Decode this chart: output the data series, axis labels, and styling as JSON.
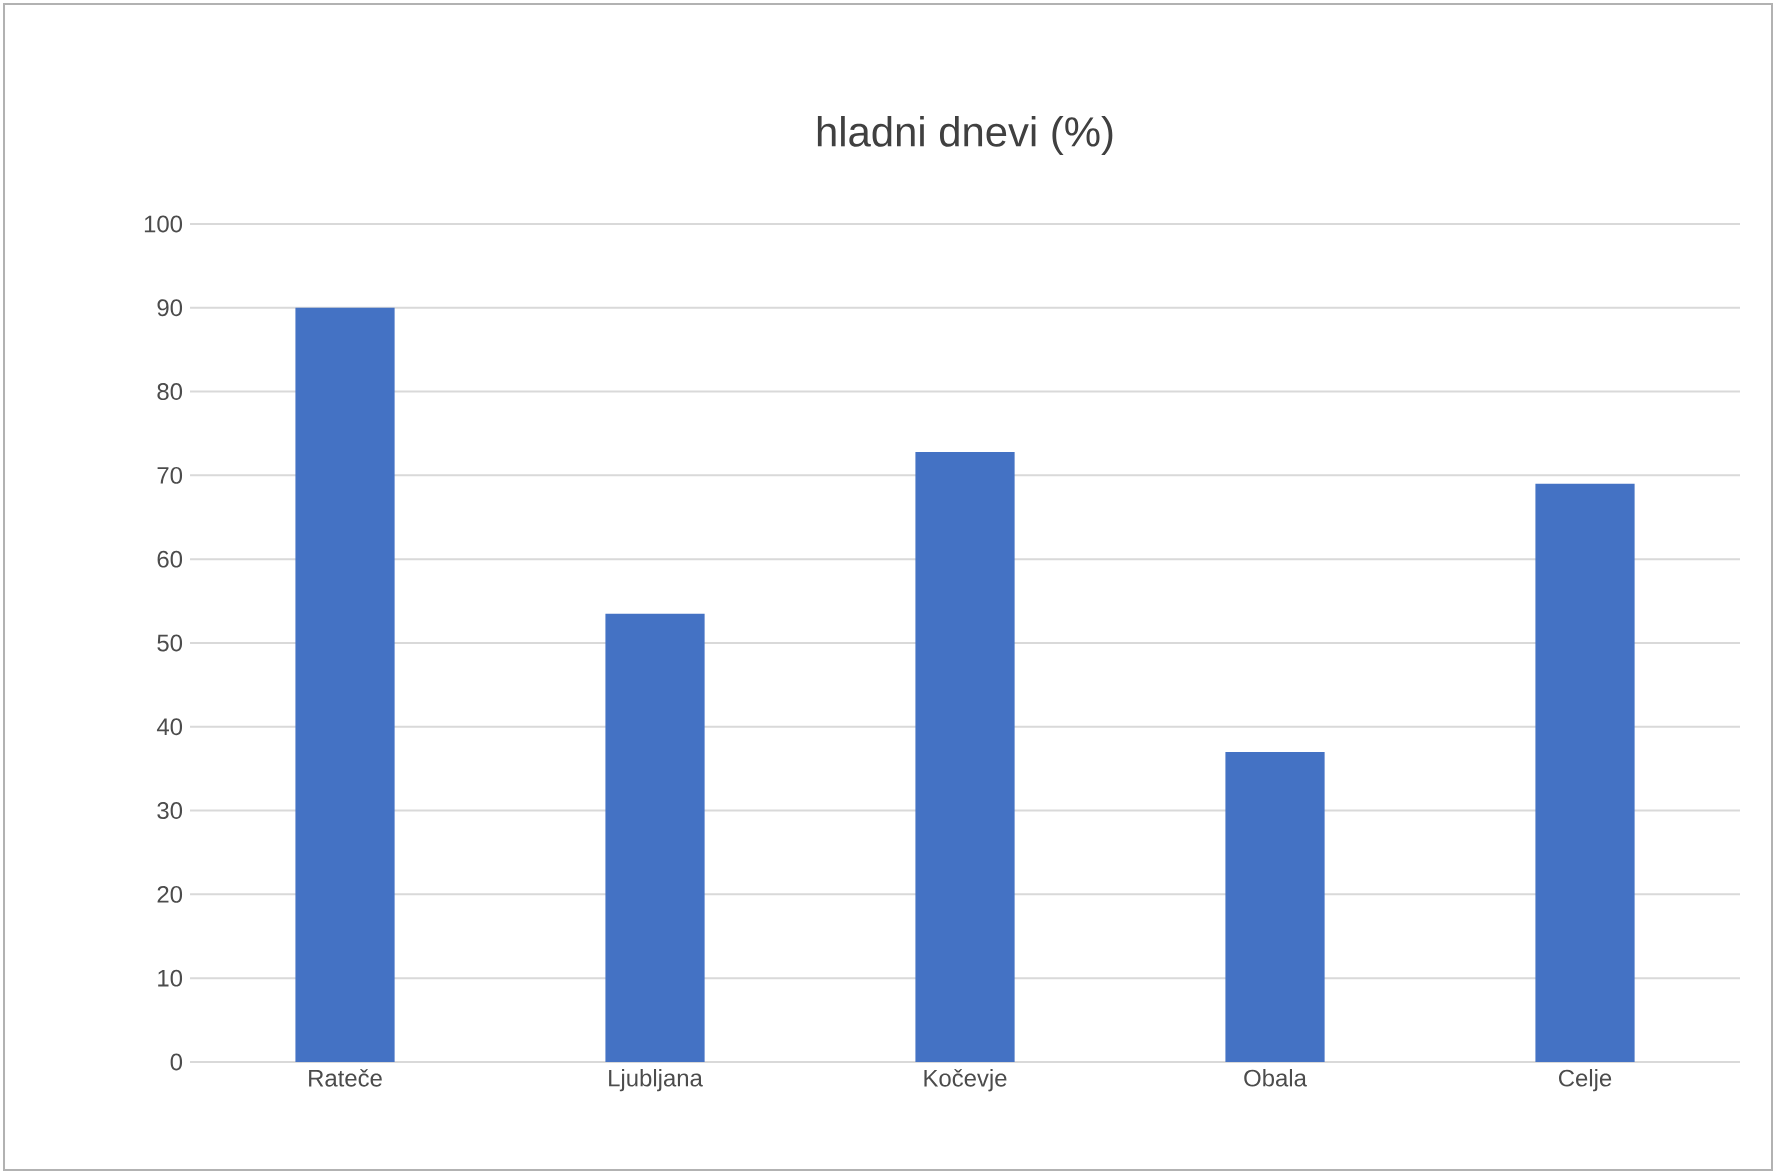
{
  "chart_data": {
    "type": "bar",
    "title": "hladni dnevi (%)",
    "categories": [
      "Rateče",
      "Ljubljana",
      "Kočevje",
      "Obala",
      "Celje"
    ],
    "values": [
      90,
      53.5,
      72.8,
      37,
      69
    ],
    "color": "#4472c4",
    "ylim": [
      0,
      100
    ],
    "yticks": [
      0,
      10,
      20,
      30,
      40,
      50,
      60,
      70,
      80,
      90,
      100
    ],
    "grid": "y"
  }
}
